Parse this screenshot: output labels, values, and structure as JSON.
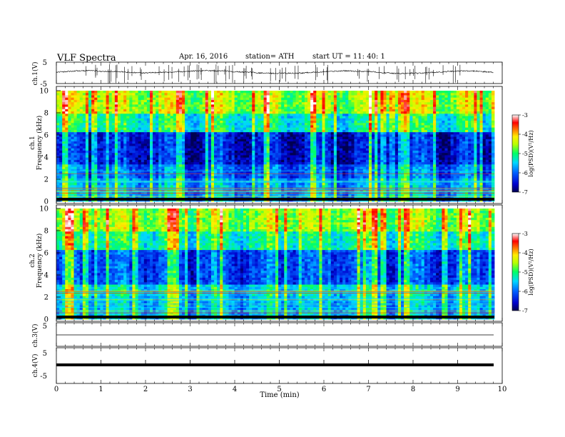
{
  "header": {
    "title": "VLF  Spectra",
    "date": "Apr. 16, 2016",
    "station": "station= ATH",
    "start": "start  UT  =    11: 40: 1"
  },
  "chart_data": [
    {
      "type": "line",
      "name": "ch1-waveform",
      "ylabel": "ch.1(V)",
      "ylim": [
        -5,
        5
      ],
      "yticks": [
        "5",
        "-5"
      ],
      "baseline": 0,
      "xlim": [
        0,
        10
      ]
    },
    {
      "type": "heatmap",
      "name": "ch1-spectrogram",
      "ylabel_channel": "ch.1",
      "ylabel": "Frequency  (kHz)",
      "ylim": [
        0,
        10
      ],
      "yticks": [
        "0",
        "2",
        "4",
        "6",
        "8",
        "10"
      ],
      "xlim": [
        0,
        9.8
      ],
      "colorbar": {
        "label": "log(PSD)(V²/Hz)",
        "range": [
          -7,
          -3
        ],
        "ticks": [
          "-3",
          "-4",
          "-5",
          "-6",
          "-7"
        ]
      }
    },
    {
      "type": "heatmap",
      "name": "ch2-spectrogram",
      "ylabel_channel": "ch.2",
      "ylabel": "Frequency  (kHz)",
      "ylim": [
        0,
        10
      ],
      "yticks": [
        "0",
        "2",
        "4",
        "6",
        "8",
        "10"
      ],
      "xlim": [
        0,
        9.8
      ],
      "colorbar": {
        "label": "log(PSD)(V²/Hz)",
        "range": [
          -7,
          -3
        ],
        "ticks": [
          "-3",
          "-4",
          "-5",
          "-6",
          "-7"
        ]
      }
    },
    {
      "type": "line",
      "name": "ch3-waveform",
      "ylabel": "ch.3(V)",
      "ylim": [
        -5,
        5
      ],
      "yticks": [
        "5"
      ],
      "baseline": 0,
      "xlim": [
        0,
        9.8
      ]
    },
    {
      "type": "line",
      "name": "ch4-waveform",
      "ylabel": "ch.4(V)",
      "ylim": [
        -5,
        5
      ],
      "yticks": [
        "5",
        "-5"
      ],
      "baseline": 0,
      "xlim": [
        0,
        9.8
      ]
    }
  ],
  "xaxis": {
    "label": "Time  (min)",
    "ticks": [
      "0",
      "1",
      "2",
      "3",
      "4",
      "5",
      "6",
      "7",
      "8",
      "9",
      "10"
    ],
    "range": [
      0,
      10
    ]
  }
}
